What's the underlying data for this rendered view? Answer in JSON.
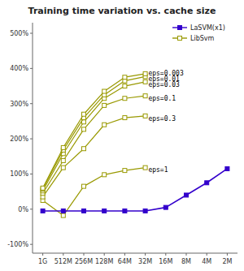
{
  "chart_data": {
    "type": "line",
    "title": "Training time variation vs. cache size",
    "categories": [
      "1G",
      "512M",
      "256M",
      "128M",
      "64M",
      "32M",
      "16M",
      "8M",
      "4M",
      "2M"
    ],
    "series": [
      {
        "name": "LaSVM(x1)",
        "color": "#3300cc",
        "marker": "square",
        "values": [
          -5,
          -5,
          -5,
          -5,
          -5,
          -5,
          5,
          40,
          75,
          115
        ]
      },
      {
        "name": "LibSvm",
        "color": "#999900",
        "marker": "square-open",
        "values": [
          60,
          175,
          270,
          335,
          375,
          385,
          null,
          null,
          null,
          null
        ]
      },
      {
        "name": "LibSvm",
        "color": "#999900",
        "marker": "square-open",
        "values": [
          57,
          168,
          260,
          325,
          365,
          377,
          null,
          null,
          null,
          null
        ]
      },
      {
        "name": "LibSvm",
        "color": "#999900",
        "marker": "square-open",
        "values": [
          52,
          158,
          248,
          315,
          350,
          362,
          null,
          null,
          null,
          null
        ]
      },
      {
        "name": "LibSvm",
        "color": "#999900",
        "marker": "square-open",
        "values": [
          45,
          138,
          227,
          295,
          315,
          322,
          null,
          null,
          null,
          null
        ]
      },
      {
        "name": "LibSvm",
        "color": "#999900",
        "marker": "square-open",
        "values": [
          35,
          118,
          172,
          240,
          260,
          265,
          null,
          null,
          null,
          null
        ]
      },
      {
        "name": "LibSvm",
        "color": "#999900",
        "marker": "square-open",
        "values": [
          25,
          -18,
          65,
          98,
          110,
          118,
          null,
          null,
          null,
          null
        ]
      }
    ],
    "annotations": [
      {
        "text": "eps=0.003",
        "x": 5.15,
        "y": 386
      },
      {
        "text": "eps=0.01",
        "x": 5.15,
        "y": 370
      },
      {
        "text": "eps=0.03",
        "x": 5.15,
        "y": 354
      },
      {
        "text": "eps=0.1",
        "x": 5.15,
        "y": 315
      },
      {
        "text": "eps=0.3",
        "x": 5.15,
        "y": 258
      },
      {
        "text": "eps=1",
        "x": 5.15,
        "y": 113
      }
    ],
    "ylim": [
      -125,
      530
    ],
    "yticks": [
      {
        "value": -100,
        "label": "-100%"
      },
      {
        "value": 0,
        "label": "0%"
      },
      {
        "value": 100,
        "label": "100%"
      },
      {
        "value": 200,
        "label": "200%"
      },
      {
        "value": 300,
        "label": "300%"
      },
      {
        "value": 400,
        "label": "400%"
      },
      {
        "value": 500,
        "label": "500%"
      }
    ],
    "grid": false,
    "legend": "upper right"
  }
}
